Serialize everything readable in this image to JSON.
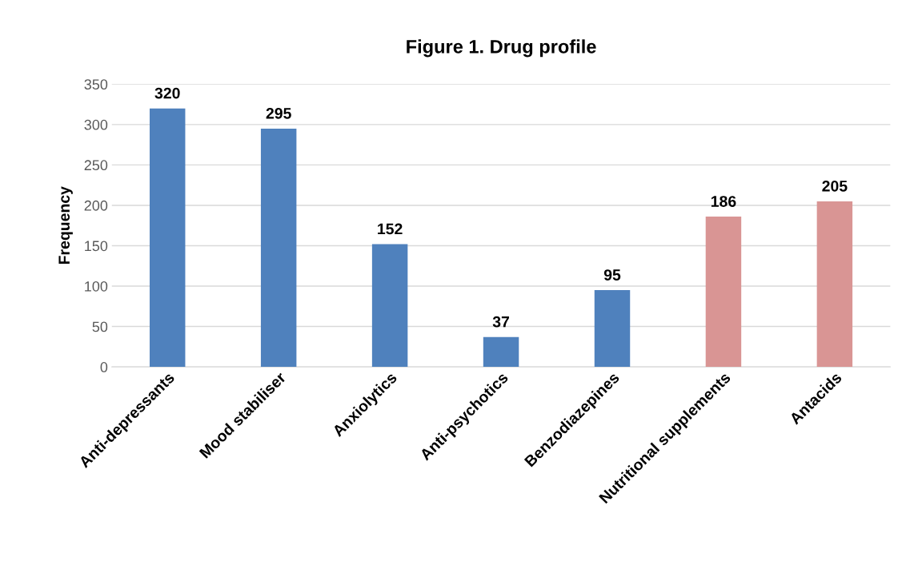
{
  "chart_data": {
    "type": "bar",
    "title": "Figure 1. Drug profile",
    "ylabel": "Frequency",
    "categories": [
      "Anti-depressants",
      "Mood stabiliser",
      "Anxiolytics",
      "Anti-psychotics",
      "Benzodiazepines",
      "Nutritional supplements",
      "Antacids"
    ],
    "values": [
      320,
      295,
      152,
      37,
      95,
      186,
      205
    ],
    "colors": [
      "#4f81bd",
      "#4f81bd",
      "#4f81bd",
      "#4f81bd",
      "#4f81bd",
      "#d99594",
      "#d99594"
    ],
    "ylim": [
      0,
      350
    ],
    "yticks": [
      0,
      50,
      100,
      150,
      200,
      250,
      300,
      350
    ],
    "grid": "y",
    "data_labels": true
  }
}
